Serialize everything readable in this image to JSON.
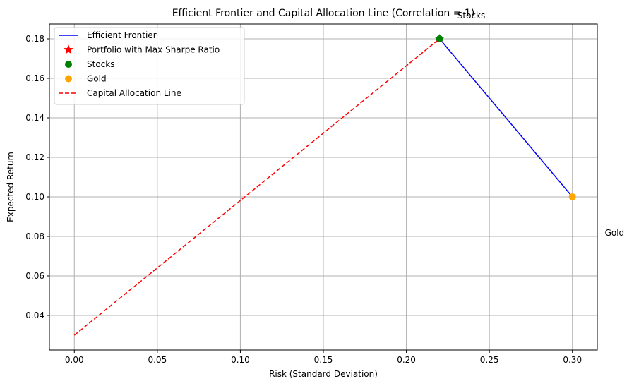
{
  "chart_data": {
    "type": "line",
    "title": "Efficient Frontier and Capital Allocation Line (Correlation = 1)",
    "xlabel": "Risk (Standard Deviation)",
    "ylabel": "Expected Return",
    "xlim": [
      -0.015,
      0.315
    ],
    "ylim": [
      0.0225,
      0.1875
    ],
    "xticks": [
      0.0,
      0.05,
      0.1,
      0.15,
      0.2,
      0.25,
      0.3
    ],
    "xtick_labels": [
      "0.00",
      "0.05",
      "0.10",
      "0.15",
      "0.20",
      "0.25",
      "0.30"
    ],
    "yticks": [
      0.04,
      0.06,
      0.08,
      0.1,
      0.12,
      0.14,
      0.16,
      0.18
    ],
    "ytick_labels": [
      "0.04",
      "0.06",
      "0.08",
      "0.10",
      "0.12",
      "0.14",
      "0.16",
      "0.18"
    ],
    "grid": true,
    "legend_position": "upper-left",
    "series": [
      {
        "name": "Efficient Frontier",
        "kind": "line",
        "style": "solid",
        "color": "#0000ff",
        "x": [
          0.22,
          0.3
        ],
        "y": [
          0.18,
          0.1
        ]
      },
      {
        "name": "Portfolio with Max Sharpe Ratio",
        "kind": "marker",
        "marker": "star",
        "color": "#ff0000",
        "x": [
          0.22
        ],
        "y": [
          0.18
        ]
      },
      {
        "name": "Stocks",
        "kind": "marker",
        "marker": "circle",
        "color": "#008000",
        "x": [
          0.22
        ],
        "y": [
          0.18
        ]
      },
      {
        "name": "Gold",
        "kind": "marker",
        "marker": "circle",
        "color": "#ffa500",
        "x": [
          0.3
        ],
        "y": [
          0.1
        ]
      },
      {
        "name": "Capital Allocation Line",
        "kind": "line",
        "style": "dashed",
        "color": "#ff0000",
        "x": [
          0.0,
          0.22
        ],
        "y": [
          0.03,
          0.18
        ]
      }
    ],
    "annotations": [
      {
        "text": "Stocks",
        "x": 0.2307,
        "y": 0.1918
      },
      {
        "text": "Gold",
        "x": 0.3195,
        "y": 0.0818
      }
    ]
  }
}
